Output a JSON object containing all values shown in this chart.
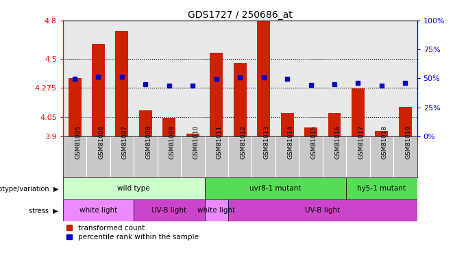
{
  "title": "GDS1727 / 250686_at",
  "samples": [
    "GSM81005",
    "GSM81006",
    "GSM81007",
    "GSM81008",
    "GSM81009",
    "GSM81010",
    "GSM81011",
    "GSM81012",
    "GSM81013",
    "GSM81014",
    "GSM81015",
    "GSM81016",
    "GSM81017",
    "GSM81018",
    "GSM81019"
  ],
  "bar_values": [
    4.35,
    4.62,
    4.72,
    4.1,
    4.04,
    3.92,
    4.55,
    4.47,
    4.8,
    4.08,
    3.97,
    4.08,
    4.27,
    3.94,
    4.13
  ],
  "percentile_values": [
    4.345,
    4.36,
    4.36,
    4.305,
    4.295,
    4.295,
    4.345,
    4.355,
    4.355,
    4.345,
    4.3,
    4.305,
    4.315,
    4.295,
    4.315
  ],
  "bar_bottom": 3.9,
  "ylim_min": 3.9,
  "ylim_max": 4.8,
  "yticks_left": [
    3.9,
    4.05,
    4.275,
    4.5,
    4.8
  ],
  "yticks_right": [
    0,
    25,
    50,
    75,
    100
  ],
  "bar_color": "#cc2200",
  "dot_color": "#0000cc",
  "plot_bg_color": "#e8e8e8",
  "xtick_bg_color": "#c8c8c8",
  "geno_groups": [
    {
      "label": "wild type",
      "start": 0,
      "end": 6,
      "color": "#ccffcc"
    },
    {
      "label": "uvr8-1 mutant",
      "start": 6,
      "end": 12,
      "color": "#55dd55"
    },
    {
      "label": "hy5-1 mutant",
      "start": 12,
      "end": 15,
      "color": "#55dd55"
    }
  ],
  "stress_groups": [
    {
      "label": "white light",
      "start": 0,
      "end": 3,
      "color": "#ee88ff"
    },
    {
      "label": "UV-B light",
      "start": 3,
      "end": 6,
      "color": "#cc44cc"
    },
    {
      "label": "white light",
      "start": 6,
      "end": 7,
      "color": "#ee88ff"
    },
    {
      "label": "UV-B light",
      "start": 7,
      "end": 15,
      "color": "#cc44cc"
    }
  ]
}
